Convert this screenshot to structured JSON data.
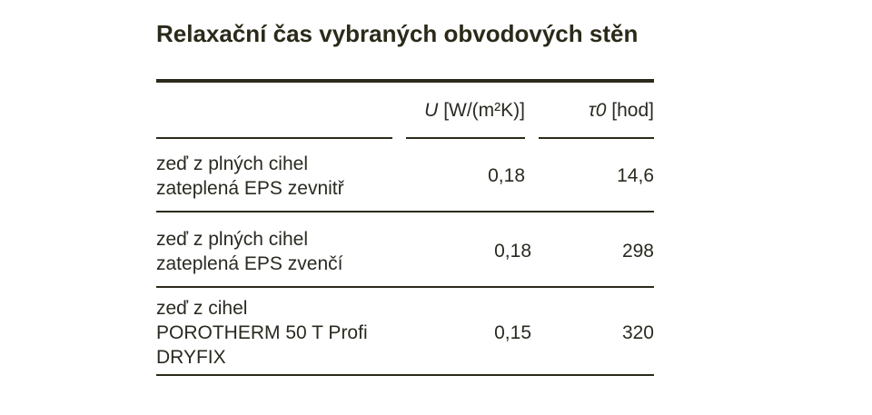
{
  "title": "Relaxační čas vybraných obvodových stěn",
  "table": {
    "header": [
      {
        "symbol": "U",
        "unit": "[W/(m²K)]"
      },
      {
        "symbol": "τ0",
        "unit": "[hod]"
      }
    ],
    "rows": [
      {
        "label": [
          "zeď z plných cihel",
          "zateplená EPS zevnitř"
        ],
        "u": "0,18",
        "tau": "14,6"
      },
      {
        "label": [
          "zeď z plných cihel",
          "zateplená EPS zvenčí"
        ],
        "u": "0,18",
        "tau": "298"
      },
      {
        "label": [
          "zeď z cihel",
          "POROTHERM 50 T Profi",
          "DRYFIX"
        ],
        "u": "0,15",
        "tau": "320"
      }
    ]
  }
}
